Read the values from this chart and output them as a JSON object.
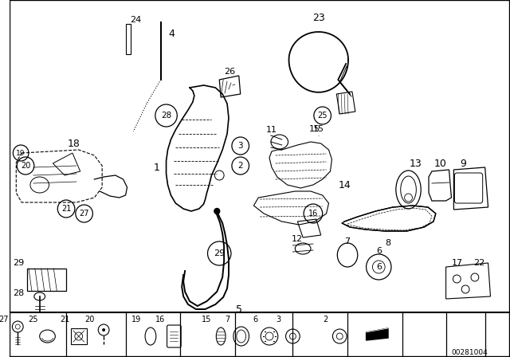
{
  "background_color": "#ffffff",
  "line_color": "#000000",
  "fig_width": 6.4,
  "fig_height": 4.48,
  "dpi": 100,
  "watermark": "00281004"
}
